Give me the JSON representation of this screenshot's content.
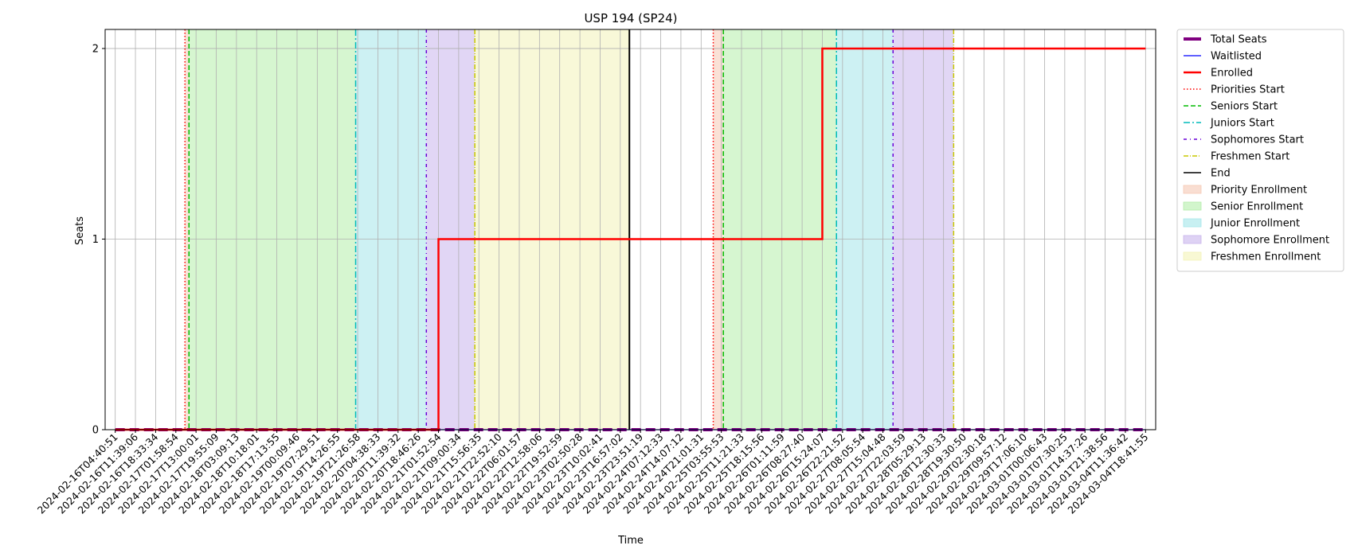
{
  "chart_data": {
    "type": "line",
    "title": "USP 194 (SP24)",
    "xlabel": "Time",
    "ylabel": "Seats",
    "ylim": [
      0,
      2.1
    ],
    "yticks": [
      0,
      1,
      2
    ],
    "grid": true,
    "legend_position": "outside-right",
    "x": [
      "2024-02-16T04:40:51",
      "2024-02-16T11:39:06",
      "2024-02-16T18:33:34",
      "2024-02-17T01:58:54",
      "2024-02-17T13:00:01",
      "2024-02-17T19:55:09",
      "2024-02-18T03:09:13",
      "2024-02-18T10:18:01",
      "2024-02-18T17:13:55",
      "2024-02-19T00:09:46",
      "2024-02-19T07:29:51",
      "2024-02-19T14:26:55",
      "2024-02-19T21:26:58",
      "2024-02-20T04:38:33",
      "2024-02-20T11:39:32",
      "2024-02-20T18:46:26",
      "2024-02-21T01:52:54",
      "2024-02-21T09:00:34",
      "2024-02-21T15:56:35",
      "2024-02-21T22:52:10",
      "2024-02-22T06:01:57",
      "2024-02-22T12:58:06",
      "2024-02-22T19:52:59",
      "2024-02-23T02:50:28",
      "2024-02-23T10:02:41",
      "2024-02-23T16:57:02",
      "2024-02-23T23:51:19",
      "2024-02-24T07:12:33",
      "2024-02-24T14:07:12",
      "2024-02-24T21:01:31",
      "2024-02-25T03:55:53",
      "2024-02-25T11:21:33",
      "2024-02-25T18:15:56",
      "2024-02-26T01:11:59",
      "2024-02-26T08:27:40",
      "2024-02-26T15:24:07",
      "2024-02-26T22:21:52",
      "2024-02-27T08:05:54",
      "2024-02-27T15:04:48",
      "2024-02-27T22:03:59",
      "2024-02-28T05:29:13",
      "2024-02-28T12:30:33",
      "2024-02-28T19:30:50",
      "2024-02-29T02:30:18",
      "2024-02-29T09:57:12",
      "2024-02-29T17:06:10",
      "2024-03-01T00:06:43",
      "2024-03-01T07:30:25",
      "2024-03-01T14:37:26",
      "2024-03-01T21:38:56",
      "2024-03-04T11:36:42",
      "2024-03-04T18:41:55"
    ],
    "series": [
      {
        "name": "Total Seats",
        "color": "#800080",
        "style": "dashed",
        "values": [
          0,
          0,
          0,
          0,
          0,
          0,
          0,
          0,
          0,
          0,
          0,
          0,
          0,
          0,
          0,
          0,
          0,
          0,
          0,
          0,
          0,
          0,
          0,
          0,
          0,
          0,
          0,
          0,
          0,
          0,
          0,
          0,
          0,
          0,
          0,
          0,
          0,
          0,
          0,
          0,
          0,
          0,
          0,
          0,
          0,
          0,
          0,
          0,
          0,
          0,
          0,
          0
        ]
      },
      {
        "name": "Waitlisted",
        "color": "#0000ff",
        "style": "solid",
        "values": [
          0,
          0,
          0,
          0,
          0,
          0,
          0,
          0,
          0,
          0,
          0,
          0,
          0,
          0,
          0,
          0,
          0,
          0,
          0,
          0,
          0,
          0,
          0,
          0,
          0,
          0,
          0,
          0,
          0,
          0,
          0,
          0,
          0,
          0,
          0,
          0,
          0,
          0,
          0,
          0,
          0,
          0,
          0,
          0,
          0,
          0,
          0,
          0,
          0,
          0,
          0,
          0
        ]
      },
      {
        "name": "Enrolled",
        "color": "#ff0000",
        "style": "solid",
        "values": [
          0,
          0,
          0,
          0,
          0,
          0,
          0,
          0,
          0,
          0,
          0,
          0,
          0,
          0,
          0,
          0,
          1,
          1,
          1,
          1,
          1,
          1,
          1,
          1,
          1,
          1,
          1,
          1,
          1,
          1,
          1,
          1,
          1,
          1,
          1,
          2,
          2,
          2,
          2,
          2,
          2,
          2,
          2,
          2,
          2,
          2,
          2,
          2,
          2,
          2,
          2,
          2
        ]
      }
    ],
    "vlines": [
      {
        "name": "Priorities Start",
        "color": "#ff0000",
        "dash": "1.5,2.5",
        "x": [
          3.45,
          29.6
        ]
      },
      {
        "name": "Seniors Start",
        "color": "#00bb00",
        "dash": "6,3",
        "x": [
          3.65,
          30.1
        ]
      },
      {
        "name": "Juniors Start",
        "color": "#00bbbb",
        "dash": "8,3,2,3",
        "x": [
          11.9,
          35.7
        ]
      },
      {
        "name": "Sophomores Start",
        "color": "#6a00d8",
        "dash": "4,4,1,4",
        "x": [
          15.4,
          38.5
        ]
      },
      {
        "name": "Freshmen Start",
        "color": "#c8c800",
        "dash": "6,2,1,2",
        "x": [
          17.8,
          41.5
        ]
      },
      {
        "name": "End",
        "color": "#000000",
        "dash": "",
        "x": [
          25.45
        ]
      }
    ],
    "bands": [
      {
        "name": "Priority Enrollment",
        "color": "#f5c8b4",
        "ranges": [
          [
            3.45,
            3.65
          ],
          [
            29.6,
            30.1
          ]
        ]
      },
      {
        "name": "Senior Enrollment",
        "color": "#b4eeaa",
        "ranges": [
          [
            3.65,
            11.9
          ],
          [
            30.1,
            35.7
          ]
        ]
      },
      {
        "name": "Junior Enrollment",
        "color": "#a4e6ea",
        "ranges": [
          [
            11.9,
            15.4
          ],
          [
            35.7,
            38.5
          ]
        ]
      },
      {
        "name": "Sophomore Enrollment",
        "color": "#c8b4ec",
        "ranges": [
          [
            15.4,
            17.8
          ],
          [
            38.5,
            41.5
          ]
        ]
      },
      {
        "name": "Freshmen Enrollment",
        "color": "#f3f3b8",
        "ranges": [
          [
            17.8,
            25.45
          ]
        ]
      }
    ]
  }
}
